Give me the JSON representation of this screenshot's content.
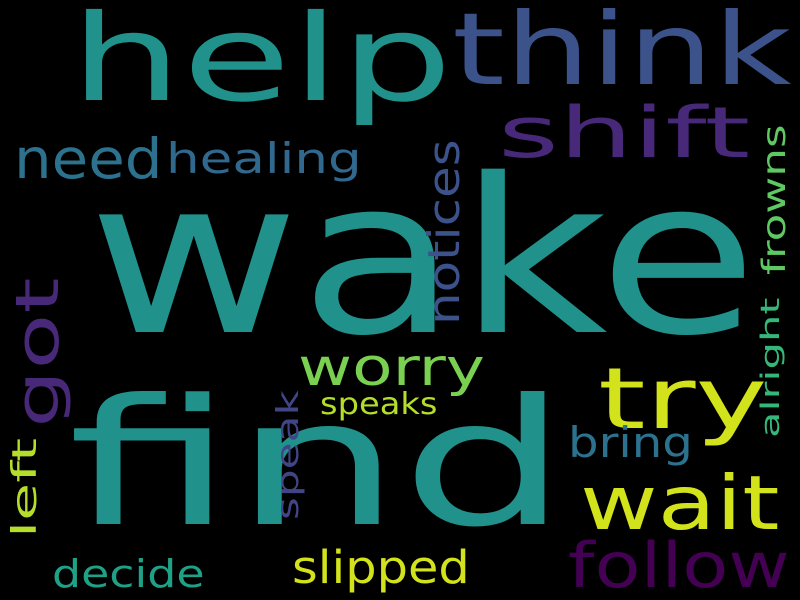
{
  "words": [
    {
      "text": "wake",
      "color": "#21918c",
      "orientation": "horizontal"
    },
    {
      "text": "find",
      "color": "#21918c",
      "orientation": "horizontal"
    },
    {
      "text": "help",
      "color": "#21918c",
      "orientation": "horizontal"
    },
    {
      "text": "think",
      "color": "#3b528b",
      "orientation": "horizontal"
    },
    {
      "text": "shift",
      "color": "#482878",
      "orientation": "horizontal"
    },
    {
      "text": "need",
      "color": "#2c728e",
      "orientation": "horizontal"
    },
    {
      "text": "healing",
      "color": "#31688e",
      "orientation": "horizontal"
    },
    {
      "text": "got",
      "color": "#482878",
      "orientation": "vertical"
    },
    {
      "text": "worry",
      "color": "#7ad151",
      "orientation": "horizontal"
    },
    {
      "text": "try",
      "color": "#d2e21b",
      "orientation": "horizontal"
    },
    {
      "text": "wait",
      "color": "#d2e21b",
      "orientation": "horizontal"
    },
    {
      "text": "notices",
      "color": "#3b528b",
      "orientation": "vertical"
    },
    {
      "text": "frowns",
      "color": "#5ec962",
      "orientation": "vertical"
    },
    {
      "text": "alright",
      "color": "#35b779",
      "orientation": "vertical"
    },
    {
      "text": "speaks",
      "color": "#b5de2b",
      "orientation": "horizontal"
    },
    {
      "text": "speak",
      "color": "#414487",
      "orientation": "vertical"
    },
    {
      "text": "bring",
      "color": "#2c728e",
      "orientation": "horizontal"
    },
    {
      "text": "left",
      "color": "#b5de2b",
      "orientation": "vertical"
    },
    {
      "text": "follow",
      "color": "#440154",
      "orientation": "horizontal"
    },
    {
      "text": "decide",
      "color": "#1fa187",
      "orientation": "horizontal"
    },
    {
      "text": "slipped",
      "color": "#d2e21b",
      "orientation": "horizontal"
    }
  ]
}
